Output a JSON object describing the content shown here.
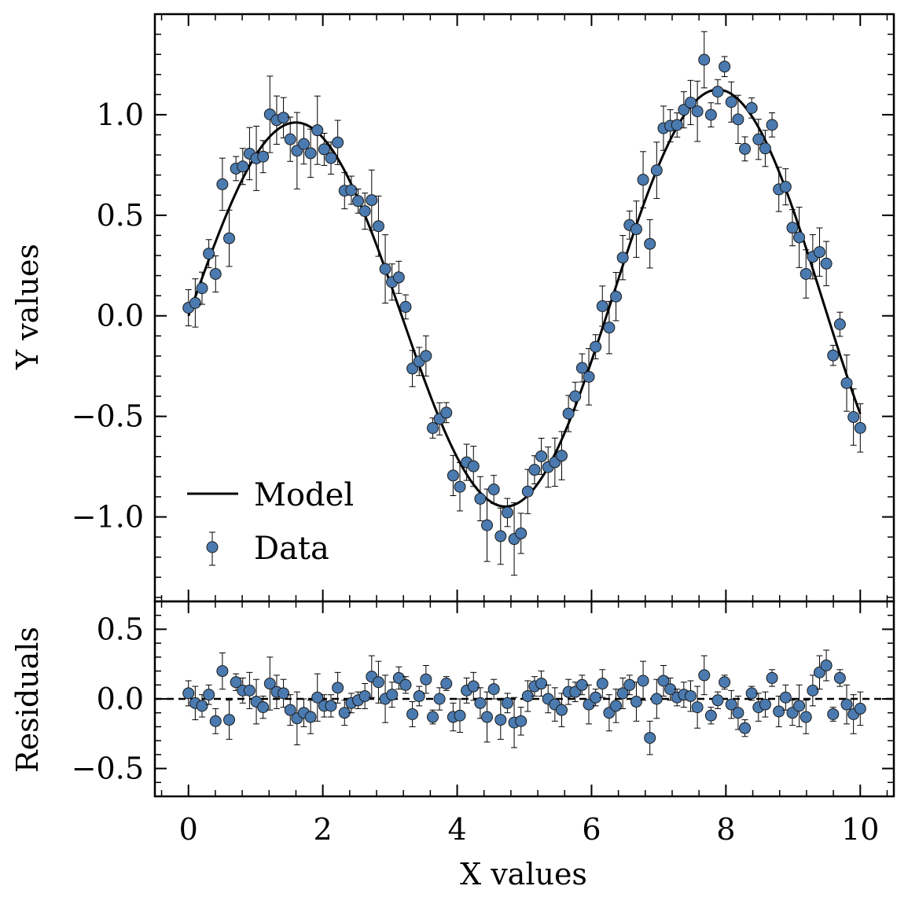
{
  "chart_data": {
    "type": "scatter",
    "x_label": "X values",
    "main_panel": {
      "y_label": "Y values",
      "xlim": [
        -0.5,
        10.5
      ],
      "ylim": [
        -1.42,
        1.5
      ],
      "xticks": [
        0,
        2,
        4,
        6,
        8,
        10
      ],
      "xtick_labels": [
        "0",
        "2",
        "4",
        "6",
        "8",
        "10"
      ],
      "yticks": [
        -1.0,
        -0.5,
        0.0,
        0.5,
        1.0
      ],
      "ytick_labels": [
        "−1.0",
        "−0.5",
        "0.0",
        "0.5",
        "1.0"
      ],
      "legend_position": "lower-left",
      "legend": {
        "model_label": "Model",
        "data_label": "Data"
      },
      "model_amplitude_base": 0.92,
      "model_amplitude_slope": 0.016,
      "model_frequency": 1.0
    },
    "residual_panel": {
      "y_label": "Residuals",
      "ylim": [
        -0.7,
        0.7
      ],
      "yticks": [
        -0.5,
        0.0,
        0.5
      ],
      "ytick_labels": [
        "−0.5",
        "0.0",
        "0.5"
      ],
      "zero_line": "dashed"
    },
    "series": [
      {
        "name": "Data",
        "marker_color": "#4a7aaf",
        "residuals": [
          0.04,
          -0.03,
          -0.05,
          0.03,
          -0.16,
          0.2,
          -0.15,
          0.12,
          0.06,
          0.06,
          -0.02,
          -0.06,
          0.11,
          0.05,
          0.04,
          -0.08,
          -0.14,
          -0.1,
          -0.13,
          0.01,
          -0.05,
          -0.05,
          0.08,
          -0.1,
          -0.03,
          -0.01,
          0.02,
          0.16,
          0.12,
          0.0,
          0.03,
          0.15,
          0.1,
          -0.11,
          0.02,
          0.14,
          -0.13,
          0.0,
          0.11,
          -0.13,
          -0.12,
          0.06,
          0.09,
          -0.03,
          -0.13,
          0.07,
          -0.15,
          -0.03,
          -0.17,
          -0.16,
          0.02,
          0.09,
          0.11,
          0.0,
          -0.04,
          -0.08,
          0.05,
          0.05,
          0.1,
          -0.04,
          0.01,
          0.11,
          -0.1,
          -0.05,
          0.04,
          0.1,
          -0.02,
          0.13,
          -0.28,
          0.0,
          0.13,
          0.07,
          0.01,
          0.03,
          0.02,
          -0.06,
          0.17,
          -0.12,
          -0.01,
          0.12,
          -0.04,
          -0.1,
          -0.21,
          0.04,
          -0.06,
          -0.04,
          0.15,
          -0.09,
          0.01,
          -0.1,
          -0.05,
          -0.13,
          0.06,
          0.19,
          0.24,
          -0.11,
          0.15,
          -0.04,
          -0.11,
          -0.07
        ],
        "error": [
          0.09,
          0.12,
          0.08,
          0.07,
          0.09,
          0.13,
          0.14,
          0.06,
          0.09,
          0.13,
          0.16,
          0.08,
          0.19,
          0.12,
          0.1,
          0.11,
          0.19,
          0.1,
          0.12,
          0.17,
          0.08,
          0.08,
          0.11,
          0.09,
          0.07,
          0.06,
          0.09,
          0.15,
          0.15,
          0.17,
          0.09,
          0.08,
          0.06,
          0.09,
          0.07,
          0.1,
          0.05,
          0.08,
          0.05,
          0.1,
          0.12,
          0.09,
          0.1,
          0.11,
          0.18,
          0.07,
          0.14,
          0.07,
          0.18,
          0.1,
          0.11,
          0.07,
          0.09,
          0.1,
          0.12,
          0.12,
          0.09,
          0.07,
          0.07,
          0.14,
          0.06,
          0.1,
          0.13,
          0.12,
          0.11,
          0.07,
          0.14,
          0.14,
          0.12,
          0.14,
          0.11,
          0.08,
          0.06,
          0.09,
          0.11,
          0.15,
          0.14,
          0.06,
          0.06,
          0.05,
          0.1,
          0.12,
          0.06,
          0.05,
          0.1,
          0.09,
          0.06,
          0.11,
          0.09,
          0.09,
          0.15,
          0.12,
          0.11,
          0.12,
          0.11,
          0.05,
          0.06,
          0.14,
          0.14,
          0.12
        ]
      }
    ]
  }
}
